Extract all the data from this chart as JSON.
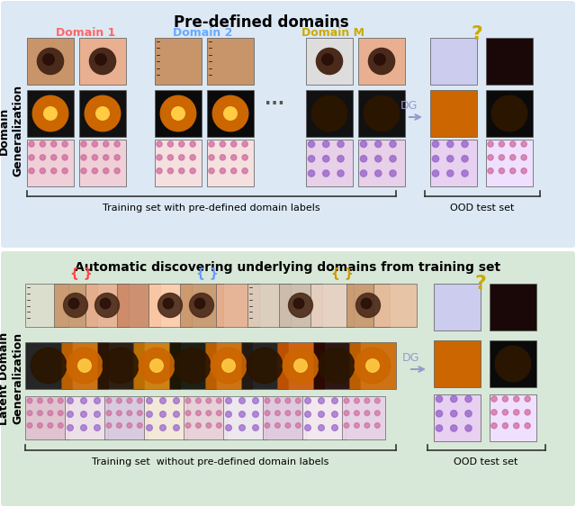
{
  "top_bg_color": "#dce9f5",
  "bottom_bg_color": "#d8e8d8",
  "top_title": "Pre-defined domains",
  "bottom_title": "Automatic discovering underlying domains from training set",
  "top_left_label": "Training set with pre-defined domain labels",
  "top_right_label": "OOD test set",
  "bottom_left_label": "Training set  without pre-defined domain labels",
  "bottom_right_label": "OOD test set",
  "dg_label": "DG",
  "question_mark": "?",
  "domain1_label": "Domain 1",
  "domain2_label": "Domain 2",
  "domainM_label": "Domain M",
  "domain1_color": "#ff6666",
  "domain2_color": "#66aaff",
  "domainM_color": "#ccaa00",
  "left_label": "Domain\nGeneralization",
  "bottom_left_rotlabel": "Latent Domain\nGeneralization",
  "arrow_color": "#9999cc",
  "dots_label": "...",
  "bracket_color": "#333333",
  "skin_color1": "#c8956a",
  "skin_color2": "#e8b090",
  "eye_dark": "#1a1a1a",
  "eye_orange": "#cc6600",
  "histo_pink": "#e8a0c0",
  "histo_purple": "#cc99cc",
  "red_brace_color": "#ff4444",
  "blue_brace_color": "#6699ff",
  "gold_brace_color": "#cc9900"
}
